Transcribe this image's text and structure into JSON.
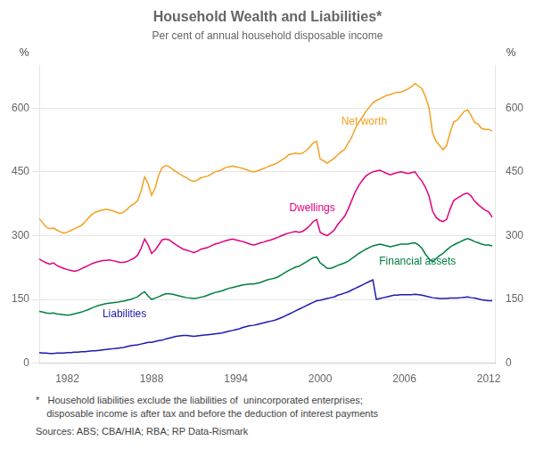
{
  "chart_data": {
    "type": "line",
    "title": "Household Wealth and Liabilities*",
    "subtitle": "Per cent of annual household disposable income",
    "y_label": "%",
    "y2_label": "%",
    "footnotes": [
      "*   Household liabilities exclude the liabilities of  unincorporated enterprises;\n    disposable income is after tax and before the deduction of interest payments",
      "Sources: ABS; CBA/HIA; RBA; RP Data-Rismark"
    ],
    "xlim": [
      1980.0,
      2012.5
    ],
    "xticks": [
      1982,
      1988,
      1994,
      2000,
      2006,
      2012
    ],
    "ylim": [
      0,
      700
    ],
    "yticks": [
      0,
      150,
      300,
      450,
      600
    ],
    "y2lim": [
      0,
      700
    ],
    "y2ticks": [
      0,
      150,
      300,
      450,
      600
    ],
    "grid": "y",
    "x": [
      1980.0,
      1980.25,
      1980.5,
      1980.75,
      1981.0,
      1981.25,
      1981.5,
      1981.75,
      1982.0,
      1982.25,
      1982.5,
      1982.75,
      1983.0,
      1983.25,
      1983.5,
      1983.75,
      1984.0,
      1984.25,
      1984.5,
      1984.75,
      1985.0,
      1985.25,
      1985.5,
      1985.75,
      1986.0,
      1986.25,
      1986.5,
      1986.75,
      1987.0,
      1987.25,
      1987.5,
      1987.75,
      1988.0,
      1988.25,
      1988.5,
      1988.75,
      1989.0,
      1989.25,
      1989.5,
      1989.75,
      1990.0,
      1990.25,
      1990.5,
      1990.75,
      1991.0,
      1991.25,
      1991.5,
      1991.75,
      1992.0,
      1992.25,
      1992.5,
      1992.75,
      1993.0,
      1993.25,
      1993.5,
      1993.75,
      1994.0,
      1994.25,
      1994.5,
      1994.75,
      1995.0,
      1995.25,
      1995.5,
      1995.75,
      1996.0,
      1996.25,
      1996.5,
      1996.75,
      1997.0,
      1997.25,
      1997.5,
      1997.75,
      1998.0,
      1998.25,
      1998.5,
      1998.75,
      1999.0,
      1999.25,
      1999.5,
      1999.75,
      2000.0,
      2000.25,
      2000.5,
      2000.75,
      2001.0,
      2001.25,
      2001.5,
      2001.75,
      2002.0,
      2002.25,
      2002.5,
      2002.75,
      2003.0,
      2003.25,
      2003.5,
      2003.75,
      2004.0,
      2004.25,
      2004.5,
      2004.75,
      2005.0,
      2005.25,
      2005.5,
      2005.75,
      2006.0,
      2006.25,
      2006.5,
      2006.75,
      2007.0,
      2007.25,
      2007.5,
      2007.75,
      2008.0,
      2008.25,
      2008.5,
      2008.75,
      2009.0,
      2009.25,
      2009.5,
      2009.75,
      2010.0,
      2010.25,
      2010.5,
      2010.75,
      2011.0,
      2011.25,
      2011.5,
      2011.75,
      2012.0,
      2012.25
    ],
    "series": [
      {
        "name": "Net worth",
        "color": "#F4A020",
        "values": [
          340,
          330,
          320,
          316,
          318,
          313,
          309,
          306,
          308,
          312,
          316,
          320,
          324,
          332,
          342,
          350,
          355,
          358,
          360,
          362,
          360,
          358,
          355,
          352,
          355,
          362,
          370,
          375,
          382,
          405,
          438,
          422,
          395,
          412,
          442,
          460,
          465,
          462,
          456,
          450,
          445,
          440,
          436,
          430,
          428,
          430,
          436,
          438,
          440,
          445,
          450,
          452,
          455,
          460,
          462,
          464,
          462,
          460,
          458,
          455,
          452,
          450,
          452,
          455,
          458,
          462,
          465,
          468,
          472,
          478,
          482,
          490,
          492,
          494,
          492,
          494,
          500,
          508,
          518,
          522,
          480,
          476,
          470,
          476,
          482,
          490,
          497,
          503,
          518,
          532,
          552,
          567,
          578,
          592,
          602,
          612,
          618,
          622,
          626,
          630,
          632,
          635,
          637,
          638,
          641,
          645,
          650,
          658,
          652,
          646,
          626,
          601,
          542,
          522,
          512,
          502,
          512,
          542,
          567,
          572,
          582,
          592,
          596,
          582,
          566,
          562,
          552,
          550,
          550,
          546
        ]
      },
      {
        "name": "Dwellings",
        "color": "#E0007F",
        "values": [
          245,
          240,
          236,
          233,
          236,
          230,
          226,
          223,
          220,
          218,
          216,
          218,
          222,
          226,
          230,
          234,
          237,
          239,
          241,
          242,
          243,
          241,
          239,
          237,
          237,
          239,
          243,
          247,
          254,
          270,
          292,
          278,
          258,
          266,
          278,
          290,
          292,
          290,
          284,
          278,
          273,
          268,
          266,
          263,
          260,
          263,
          268,
          270,
          272,
          276,
          280,
          282,
          285,
          288,
          290,
          292,
          290,
          288,
          286,
          283,
          280,
          278,
          280,
          283,
          285,
          288,
          290,
          293,
          296,
          300,
          303,
          306,
          308,
          310,
          308,
          310,
          316,
          323,
          333,
          338,
          308,
          303,
          300,
          306,
          313,
          326,
          336,
          346,
          363,
          383,
          403,
          418,
          430,
          440,
          446,
          450,
          452,
          454,
          450,
          446,
          443,
          446,
          448,
          450,
          448,
          446,
          448,
          450,
          438,
          428,
          413,
          393,
          358,
          343,
          336,
          333,
          338,
          362,
          382,
          388,
          393,
          398,
          400,
          393,
          381,
          373,
          366,
          360,
          356,
          343
        ]
      },
      {
        "name": "Financial assets",
        "color": "#008040",
        "values": [
          122,
          120,
          118,
          117,
          118,
          116,
          115,
          114,
          113,
          114,
          116,
          118,
          120,
          123,
          126,
          130,
          133,
          136,
          138,
          140,
          141,
          142,
          143,
          145,
          146,
          148,
          150,
          153,
          156,
          163,
          168,
          158,
          150,
          153,
          156,
          160,
          163,
          163,
          162,
          160,
          158,
          156,
          154,
          153,
          152,
          153,
          155,
          157,
          160,
          163,
          166,
          168,
          170,
          173,
          176,
          178,
          180,
          182,
          184,
          185,
          186,
          186,
          188,
          190,
          193,
          196,
          198,
          200,
          203,
          208,
          213,
          218,
          222,
          226,
          228,
          233,
          238,
          243,
          248,
          250,
          236,
          230,
          223,
          223,
          226,
          230,
          233,
          236,
          240,
          246,
          252,
          258,
          263,
          268,
          272,
          276,
          278,
          280,
          278,
          276,
          274,
          276,
          278,
          280,
          280,
          280,
          282,
          283,
          278,
          270,
          256,
          246,
          238,
          246,
          253,
          258,
          266,
          273,
          278,
          282,
          286,
          290,
          293,
          290,
          286,
          283,
          280,
          278,
          278,
          276
        ]
      },
      {
        "name": "Liabilities",
        "color": "#1C1CB0",
        "values": [
          25,
          24,
          24,
          23,
          23,
          24,
          24,
          24,
          25,
          25,
          26,
          26,
          27,
          27,
          28,
          29,
          29,
          30,
          31,
          32,
          33,
          34,
          35,
          36,
          37,
          39,
          41,
          42,
          43,
          45,
          47,
          49,
          49,
          51,
          53,
          54,
          57,
          59,
          61,
          63,
          64,
          65,
          65,
          64,
          63,
          64,
          65,
          66,
          67,
          68,
          69,
          70,
          71,
          73,
          75,
          77,
          79,
          81,
          84,
          86,
          88,
          89,
          91,
          93,
          95,
          97,
          99,
          101,
          104,
          107,
          111,
          115,
          119,
          123,
          127,
          131,
          135,
          139,
          143,
          147,
          148,
          150,
          152,
          154,
          156,
          160,
          162,
          165,
          168,
          172,
          176,
          180,
          184,
          188,
          192,
          196,
          150,
          152,
          154,
          156,
          158,
          160,
          160,
          161,
          161,
          161,
          161,
          162,
          161,
          160,
          158,
          156,
          154,
          153,
          152,
          152,
          152,
          153,
          153,
          153,
          154,
          155,
          156,
          154,
          153,
          151,
          149,
          148,
          147,
          147
        ]
      }
    ],
    "annotations": [
      {
        "text": "Net worth",
        "x": 2001.5,
        "y": 560,
        "color": "#F4A020"
      },
      {
        "text": "Dwellings",
        "x": 1997.8,
        "y": 358,
        "color": "#E0007F"
      },
      {
        "text": "Financial assets",
        "x": 2004.2,
        "y": 232,
        "color": "#008040"
      },
      {
        "text": "Liabilities",
        "x": 1984.5,
        "y": 108,
        "color": "#1C1CB0"
      }
    ]
  }
}
